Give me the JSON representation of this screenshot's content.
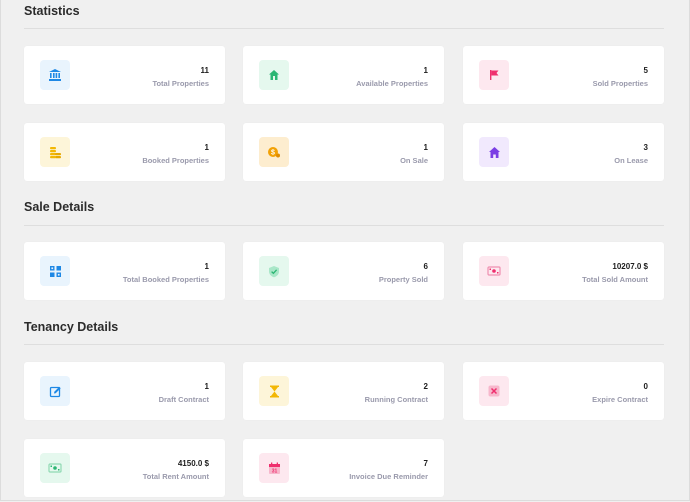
{
  "sections": {
    "statistics": "Statistics",
    "sale": "Sale Details",
    "tenancy": "Tenancy Details"
  },
  "cards": [
    {
      "value": "11",
      "label": "Total Properties",
      "icon": "bank-icon",
      "color": "#1e88e5",
      "bg": "#e9f4fd"
    },
    {
      "value": "1",
      "label": "Available Properties",
      "icon": "house-icon",
      "color": "#2bb673",
      "bg": "#e5f8ee"
    },
    {
      "value": "5",
      "label": "Sold Properties",
      "icon": "flag-icon",
      "color": "#ef2f6e",
      "bg": "#fde8ef"
    },
    {
      "value": "1",
      "label": "Booked Properties",
      "icon": "coins-icon",
      "color": "#f2b705",
      "bg": "#fdf5d9"
    },
    {
      "value": "1",
      "label": "On Sale",
      "icon": "dollar-icon",
      "color": "#f2a105",
      "bg": "#fdedcf"
    },
    {
      "value": "3",
      "label": "On Lease",
      "icon": "home-icon",
      "color": "#7b3fe4",
      "bg": "#f1e9fd"
    },
    {
      "value": "1",
      "label": "Total Booked Properties",
      "icon": "grid-icon",
      "color": "#1e88e5",
      "bg": "#e9f4fd"
    },
    {
      "value": "6",
      "label": "Property Sold",
      "icon": "shield-check-icon",
      "color": "#2bb673",
      "bg": "#e5f8ee"
    },
    {
      "value": "10207.0 $",
      "label": "Total Sold Amount",
      "icon": "money-icon",
      "color": "#ef2f6e",
      "bg": "#fde8ef"
    },
    {
      "value": "1",
      "label": "Draft Contract",
      "icon": "edit-icon",
      "color": "#1e88e5",
      "bg": "#e9f4fd"
    },
    {
      "value": "2",
      "label": "Running Contract",
      "icon": "hourglass-icon",
      "color": "#f2b705",
      "bg": "#fdf5d9"
    },
    {
      "value": "0",
      "label": "Expire Contract",
      "icon": "close-box-icon",
      "color": "#ef2f6e",
      "bg": "#fde8ef"
    },
    {
      "value": "4150.0 $",
      "label": "Total Rent Amount",
      "icon": "cash-icon",
      "color": "#2bb673",
      "bg": "#e5f8ee"
    },
    {
      "value": "7",
      "label": "Invoice Due Reminder",
      "icon": "calendar-icon",
      "color": "#ef2f6e",
      "bg": "#fde8ef"
    }
  ]
}
